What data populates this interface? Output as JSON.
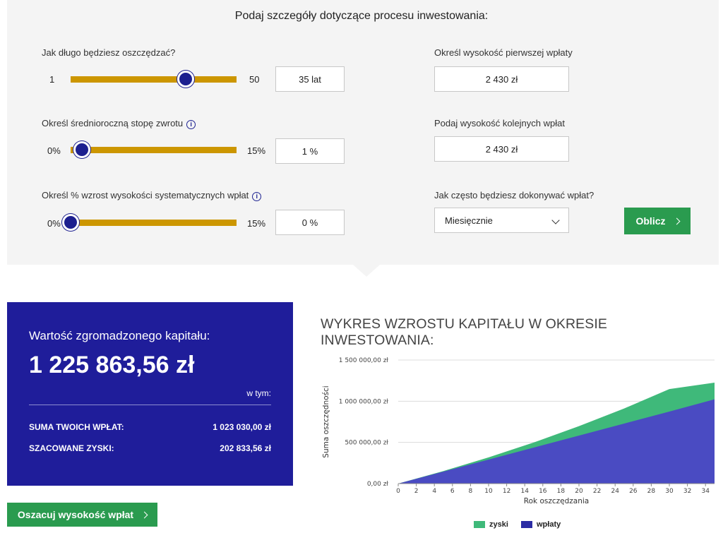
{
  "heading": {
    "prefix": "Podaj szczegóły dotyczące",
    "bold": "procesu inwestowania:"
  },
  "savings_duration": {
    "label": "Jak długo będziesz oszczędzać?",
    "min": "1",
    "max": "50",
    "value": "35 lat",
    "slider_fraction": 0.694
  },
  "return_rate": {
    "label": "Określ średnioroczną stopę zwrotu",
    "info_icon": "info-icon",
    "min": "0%",
    "max": "15%",
    "value": "1 %",
    "slider_fraction": 0.067
  },
  "payment_growth": {
    "label": "Określ % wzrost wysokości systematycznych wpłat",
    "info_icon": "info-icon",
    "min": "0%",
    "max": "15%",
    "value": "0 %",
    "slider_fraction": 0.0
  },
  "first_payment": {
    "label": "Określ wysokość pierwszej wpłaty",
    "value": "2 430  zł"
  },
  "next_payments": {
    "label": "Podaj wysokość kolejnych wpłat",
    "value": "2 430  zł"
  },
  "frequency": {
    "label": "Jak często będziesz dokonywać wpłat?",
    "selected": "Miesięcznie"
  },
  "calculate_button": "Oblicz",
  "result": {
    "title": "Wartość zgromadzonego kapitału:",
    "value": "1 225 863,56 zł",
    "w_tym": "w tym:",
    "contributions_label": "SUMA TWOICH WPŁAT:",
    "contributions_value": "1 023 030,00 zł",
    "gains_label": "SZACOWANE ZYSKI:",
    "gains_value": "202 833,56 zł"
  },
  "estimate_button": "Oszacuj wysokość wpłat",
  "colors": {
    "slider_track": "#cc9600",
    "slider_thumb": "#1c1f8f",
    "result_bg": "#1f1d9a",
    "button_green": "#2a9b4f",
    "gains_area": "#3fb97a",
    "contributions_area": "#4a4bc2"
  },
  "chart_data": {
    "type": "area",
    "title": "WYKRES WZROSTU KAPITAŁU W OKRESIE INWESTOWANIA:",
    "xlabel": "Rok oszczędzania",
    "ylabel": "Suma oszczędności",
    "xlim": [
      0,
      35
    ],
    "ylim": [
      0,
      1500000
    ],
    "x_ticks": [
      "0",
      "2",
      "4",
      "6",
      "8",
      "10",
      "12",
      "14",
      "16",
      "18",
      "20",
      "22",
      "24",
      "26",
      "28",
      "30",
      "32",
      "34"
    ],
    "y_ticks": [
      "0,00 zł",
      "500 000,00 zł",
      "1 000 000,00 zł",
      "1 500 000,00 zł"
    ],
    "y_tick_values": [
      0,
      500000,
      1000000,
      1500000
    ],
    "grid": true,
    "legend": "bottom",
    "x": [
      0,
      5,
      10,
      15,
      20,
      25,
      30,
      35
    ],
    "series": [
      {
        "name": "zyski",
        "stack_top": [
          0,
          152500,
          318500,
          499500,
          697000,
          912000,
          1147000,
          1225864
        ]
      },
      {
        "name": "wpłaty",
        "values": [
          0,
          145800,
          291600,
          437400,
          583200,
          729000,
          874800,
          1023030
        ]
      }
    ]
  }
}
